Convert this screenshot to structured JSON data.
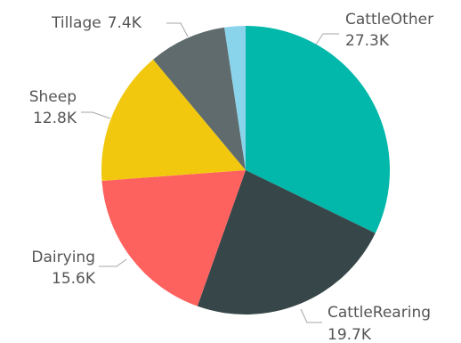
{
  "chart_data": {
    "type": "pie",
    "title": "",
    "legend": "none",
    "slices": [
      {
        "label": "CattleOther",
        "value": 27.3,
        "display": "27.3K",
        "color": "#01B8AA"
      },
      {
        "label": "CattleRearing",
        "value": 19.7,
        "display": "19.7K",
        "color": "#374649"
      },
      {
        "label": "Dairying",
        "value": 15.6,
        "display": "15.6K",
        "color": "#FD625E"
      },
      {
        "label": "Sheep",
        "value": 12.8,
        "display": "12.8K",
        "color": "#F2C80F"
      },
      {
        "label": "Tillage",
        "value": 7.4,
        "display": "7.4K",
        "color": "#5F6B6D"
      },
      {
        "label": "",
        "value": 2.0,
        "display": "",
        "color": "#8AD4EB"
      }
    ]
  }
}
